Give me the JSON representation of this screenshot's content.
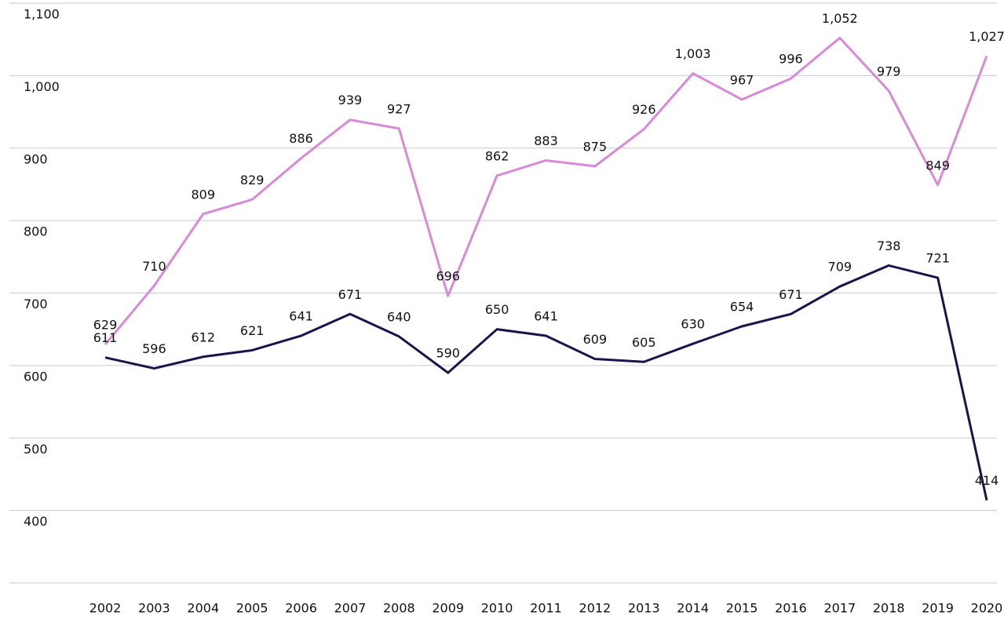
{
  "chart_data": {
    "type": "line",
    "categories": [
      "2002",
      "2003",
      "2004",
      "2005",
      "2006",
      "2007",
      "2008",
      "2009",
      "2010",
      "2011",
      "2012",
      "2013",
      "2014",
      "2015",
      "2016",
      "2017",
      "2018",
      "2019",
      "2020"
    ],
    "series": [
      {
        "color": "#d68ad8",
        "values": [
          629,
          710,
          809,
          829,
          886,
          939,
          927,
          696,
          862,
          883,
          875,
          926,
          1003,
          967,
          996,
          1052,
          979,
          849,
          1027
        ],
        "value_labels": [
          "629",
          "710",
          "809",
          "829",
          "886",
          "939",
          "927",
          "696",
          "862",
          "883",
          "875",
          "926",
          "1,003",
          "967",
          "996",
          "1,052",
          "979",
          "849",
          "1,027"
        ]
      },
      {
        "color": "#17154b",
        "values": [
          611,
          596,
          612,
          621,
          641,
          671,
          640,
          590,
          650,
          641,
          609,
          605,
          630,
          654,
          671,
          709,
          738,
          721,
          414
        ]
      }
    ],
    "ylim": [
      300,
      1100
    ],
    "yticks": [
      {
        "value": 400,
        "label": "400"
      },
      {
        "value": 500,
        "label": "500"
      },
      {
        "value": 600,
        "label": "600"
      },
      {
        "value": 700,
        "label": "700"
      },
      {
        "value": 800,
        "label": "800"
      },
      {
        "value": 900,
        "label": "900"
      },
      {
        "value": 1000,
        "label": "1,000"
      },
      {
        "value": 1100,
        "label": "1,100"
      }
    ],
    "grid": true
  }
}
